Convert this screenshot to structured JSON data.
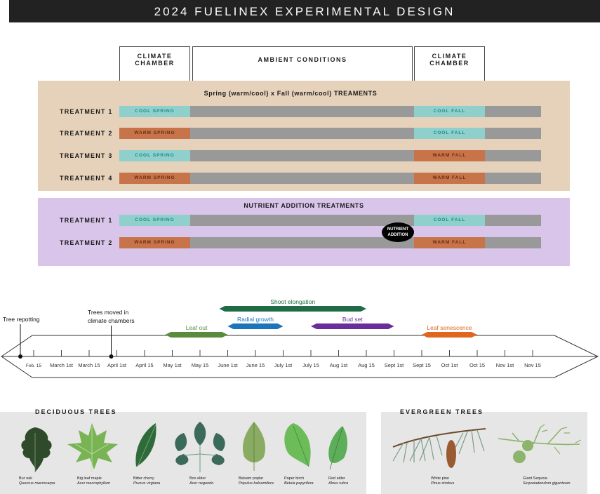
{
  "title": "2024 FUELINEX EXPERIMENTAL DESIGN",
  "phases": [
    "CLIMATE CHAMBER",
    "AMBIENT CONDITIONS",
    "CLIMATE CHAMBER"
  ],
  "warm_cool_panel": {
    "title": "Spring (warm/cool) x Fall (warm/cool) TREAMENTS",
    "rows": [
      {
        "label": "TREATMENT 1",
        "spring": "COOL SPRING",
        "fall": "COOL FALL"
      },
      {
        "label": "TREATMENT 2",
        "spring": "WARM SPRING",
        "fall": "COOL FALL"
      },
      {
        "label": "TREATMENT 3",
        "spring": "COOL SPRING",
        "fall": "WARM FALL"
      },
      {
        "label": "TREATMENT 4",
        "spring": "WARM SPRING",
        "fall": "WARM FALL"
      }
    ]
  },
  "nutrient_panel": {
    "title": "NUTRIENT ADDITION TREATMENTS",
    "rows": [
      {
        "label": "TREATMENT 1",
        "spring": "COOL SPRING",
        "fall": "COOL FALL"
      },
      {
        "label": "TREATMENT 2",
        "spring": "WARM SPRING",
        "fall": "WARM FALL"
      }
    ],
    "marker_line1": "NUTRIENT",
    "marker_line2": "ADDITION"
  },
  "timeline": {
    "ticks": [
      "Feb. 15",
      "March 1st",
      "March 15",
      "April 1st",
      "April 15",
      "May 1st",
      "May 15",
      "June 1st",
      "June 15",
      "July 1st",
      "July 15",
      "Aug 1st",
      "Aug 15",
      "Sept 1st",
      "Sept 15",
      "Oct 1st",
      "Oct 15",
      "Nov 1st",
      "Nov 15"
    ],
    "events": [
      {
        "label": "Tree repotting",
        "date": "Feb. 15"
      },
      {
        "label": "Trees moved in climate chambers",
        "line1": "Trees moved in",
        "line2": "climate chambers",
        "date": "April 1st"
      }
    ],
    "phenophases": [
      {
        "label": "Shoot elongation",
        "color": "#1f6b45",
        "start": "June 1st",
        "end": "Aug 15"
      },
      {
        "label": "Radial growth",
        "color": "#1c74bb",
        "start": "June 1st",
        "end": "July 1st"
      },
      {
        "label": "Bud set",
        "color": "#6a2e9a",
        "start": "July 15",
        "end": "Sept 1st"
      },
      {
        "label": "Leaf out",
        "color": "#5a8a3c",
        "start": "May 1st",
        "end": "June 1st"
      },
      {
        "label": "Leaf senescence",
        "color": "#e0651e",
        "start": "Sept 15",
        "end": "Oct 15"
      }
    ]
  },
  "deciduous": {
    "title": "DECIDUOUS TREES",
    "trees": [
      {
        "common": "Bur oak",
        "latin": "Quercus macrocarpa"
      },
      {
        "common": "Big leaf maple",
        "latin": "Acer macrophyllum"
      },
      {
        "common": "Bitter cherry",
        "latin": "Prunus virgiana"
      },
      {
        "common": "Box elder",
        "latin": "Acer negundo"
      },
      {
        "common": "Balsam poplar",
        "latin": "Populus balsamifera"
      },
      {
        "common": "Paper birch",
        "latin": "Betula papyrifera"
      },
      {
        "common": "Red alder",
        "latin": "Alnus rubra"
      }
    ]
  },
  "evergreen": {
    "title": "EVERGREEN TREES",
    "trees": [
      {
        "common": "White pine",
        "latin": "Pinus strobus"
      },
      {
        "common": "Giant Sequoia",
        "latin": "Sequoiadendron giganteum"
      }
    ]
  },
  "colors": {
    "warm_cool_panel": "#e6d2ba",
    "nutrient_panel": "#d9c5ea",
    "cool": "#8fd0cc",
    "warm": "#c8744a",
    "ambient": "#999999"
  }
}
